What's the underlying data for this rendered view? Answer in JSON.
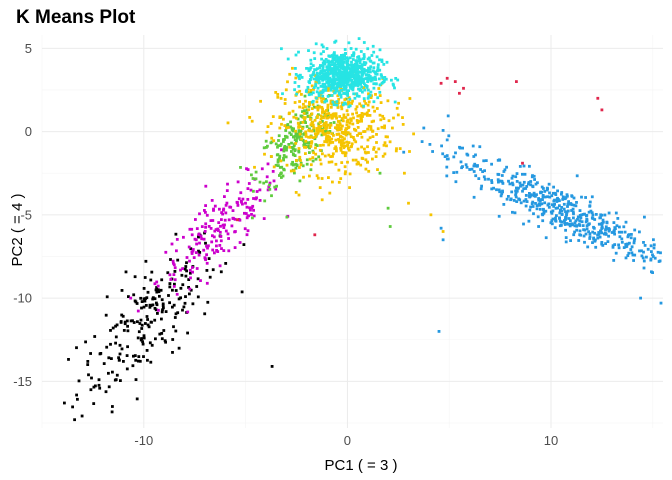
{
  "chart_data": {
    "type": "scatter",
    "title": "K Means Plot",
    "xlabel": "PC1 ( = 3 )",
    "ylabel": "PC2 ( = 4 )",
    "xlim": [
      -15,
      15.5
    ],
    "ylim": [
      -17.8,
      5.8
    ],
    "x_ticks": [
      -10,
      0,
      10
    ],
    "y_ticks": [
      5,
      0,
      -5,
      -10,
      -15
    ],
    "x_tick_labels": [
      "-10",
      "0",
      "10"
    ],
    "y_tick_labels": [
      "5",
      "0",
      "-5",
      "-10",
      "-15"
    ],
    "grid": true,
    "legend": "none",
    "series": [
      {
        "color": "#000000",
        "count": 230,
        "cx": -9.8,
        "cy": -11.3,
        "spread_x": 1.7,
        "spread_y": 1.6,
        "slope": 1.05,
        "extra": [
          [
            -13.9,
            -16.3
          ],
          [
            -13.4,
            -17.3
          ],
          [
            -12.6,
            -15.5
          ],
          [
            -3.7,
            -14.1
          ],
          [
            -7.4,
            -9.3
          ],
          [
            -11.0,
            -13.8
          ],
          [
            -12.2,
            -14.9
          ]
        ]
      },
      {
        "color": "#CC00CC",
        "count": 190,
        "cx": -6.3,
        "cy": -5.9,
        "spread_x": 1.5,
        "spread_y": 1.0,
        "slope": 1.0,
        "extra": [
          [
            -5.5,
            -6.0
          ],
          [
            -4.3,
            -3.5
          ],
          [
            -8.5,
            -8.0
          ]
        ]
      },
      {
        "color": "#5FCB3E",
        "count": 230,
        "cx": -2.4,
        "cy": -0.6,
        "spread_x": 1.0,
        "spread_y": 1.0,
        "slope": 0.9,
        "extra": [
          [
            2.0,
            -4.6
          ],
          [
            2.1,
            -5.7
          ],
          [
            1.6,
            -2.5
          ]
        ]
      },
      {
        "color": "#F5C400",
        "count": 520,
        "cx": -0.6,
        "cy": 0.3,
        "spread_x": 1.4,
        "spread_y": 1.4,
        "slope": 0.0,
        "extra": [
          [
            -2.7,
            3.8
          ],
          [
            2.8,
            -2.5
          ],
          [
            3.0,
            -4.3
          ],
          [
            4.1,
            -5.0
          ],
          [
            4.7,
            -6.0
          ],
          [
            2.5,
            1.0
          ],
          [
            -3.9,
            0.3
          ],
          [
            -0.9,
            3.2
          ]
        ]
      },
      {
        "color": "#27E4E4",
        "count": 700,
        "cx": -0.2,
        "cy": 3.4,
        "spread_x": 0.9,
        "spread_y": 0.75,
        "slope": 0.0,
        "extra": [
          [
            1.6,
            2.8
          ],
          [
            1.7,
            2.9
          ],
          [
            1.8,
            3.0
          ]
        ]
      },
      {
        "color": "#2598E0",
        "count": 520,
        "cx": 10.3,
        "cy": -4.6,
        "spread_x": 2.7,
        "spread_y": 0.7,
        "slope": -0.57,
        "extra": [
          [
            4.5,
            -12.0
          ],
          [
            9.0,
            -3.0
          ],
          [
            15.5,
            -9.4
          ],
          [
            15.4,
            -10.3
          ],
          [
            14.4,
            -10.0
          ],
          [
            4.9,
            -0.5
          ],
          [
            4.8,
            -1.5
          ],
          [
            4.7,
            -6.5
          ],
          [
            4.6,
            -5.8
          ]
        ]
      },
      {
        "color": "#E0264C",
        "count": 0,
        "cx": 0,
        "cy": 0,
        "spread_x": 0,
        "spread_y": 0,
        "slope": 0,
        "extra": [
          [
            4.9,
            3.2
          ],
          [
            4.6,
            2.9
          ],
          [
            5.3,
            3.0
          ],
          [
            5.5,
            2.3
          ],
          [
            5.7,
            2.6
          ],
          [
            8.3,
            3.0
          ],
          [
            12.3,
            2.0
          ],
          [
            12.5,
            1.3
          ],
          [
            8.6,
            -1.9
          ],
          [
            -1.6,
            -6.2
          ],
          [
            -5.4,
            -5.3
          ]
        ]
      }
    ]
  }
}
